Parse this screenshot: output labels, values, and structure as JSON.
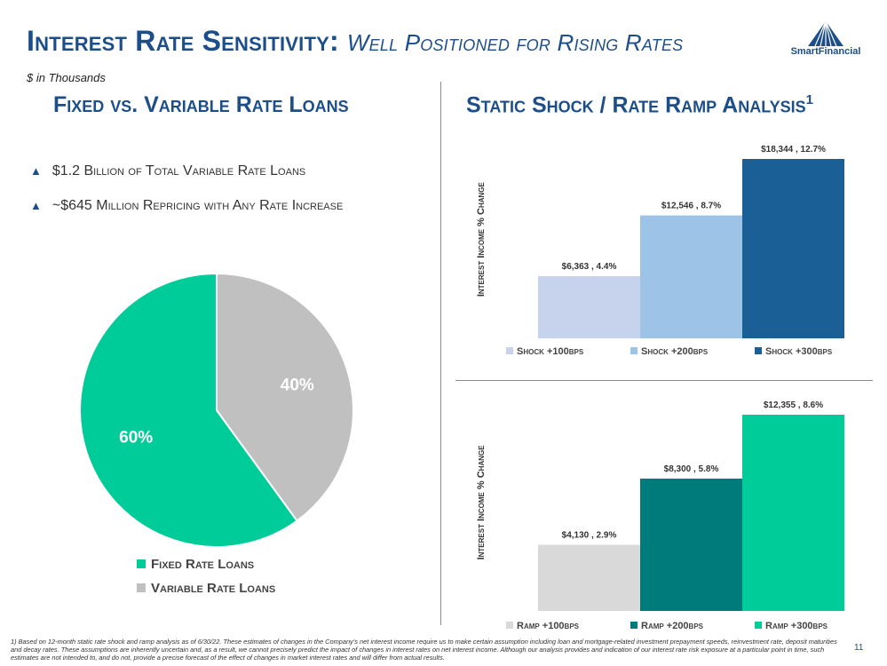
{
  "header": {
    "title_main": "Interest Rate Sensitivity:",
    "title_sub": "Well Positioned for Rising Rates",
    "units_note": "$ in Thousands",
    "logo_text": "SmartFinancial"
  },
  "left_panel": {
    "title": "Fixed vs. Variable Rate Loans",
    "bullets": [
      "$1.2 Billion of Total Variable Rate Loans",
      "~$645 Million Repricing with Any Rate Increase"
    ]
  },
  "right_panel": {
    "title": "Static Shock / Rate Ramp Analysis",
    "title_superscript": "1"
  },
  "colors": {
    "title_blue": "#1c4e8a",
    "fixed": "#00cc99",
    "variable": "#c0c0c0"
  },
  "chart_data": [
    {
      "type": "pie",
      "slices": [
        {
          "label": "Fixed Rate Loans",
          "value": 60,
          "display": "60%",
          "color": "#00cc99"
        },
        {
          "label": "Variable Rate Loans",
          "value": 40,
          "display": "40%",
          "color": "#c0c0c0"
        }
      ],
      "legend_position": "bottom"
    },
    {
      "type": "bar",
      "ylabel": "Interest Income % Change",
      "categories": [
        "Shock +100bps",
        "Shock +200bps",
        "Shock +300bps"
      ],
      "values": [
        4.4,
        8.7,
        12.7
      ],
      "data_labels": [
        "$6,363 , 4.4%",
        "$12,546 , 8.7%",
        "$18,344 , 12.7%"
      ],
      "colors": [
        "#c7d2ec",
        "#9dc3e6",
        "#1a5f96"
      ],
      "ylim": [
        0,
        14
      ],
      "legend_position": "bottom",
      "grid": false
    },
    {
      "type": "bar",
      "ylabel": "Interest Income % Change",
      "categories": [
        "Ramp +100bps",
        "Ramp +200bps",
        "Ramp +300bps"
      ],
      "values": [
        2.9,
        5.8,
        8.6
      ],
      "data_labels": [
        "$4,130 , 2.9%",
        "$8,300 , 5.8%",
        "$12,355 , 8.6%"
      ],
      "colors": [
        "#d9d9d9",
        "#007b7b",
        "#00cc99"
      ],
      "ylim": [
        0,
        9.5
      ],
      "legend_position": "bottom",
      "grid": false
    }
  ],
  "footnote": "1) Based on 12-month static rate shock and ramp analysis as of 6/30/22. These estimates of changes in the Company’s net interest income require us to make certain assumption including loan and mortgage-related investment prepayment speeds, reinvestment rate, deposit maturities and decay rates. These assumptions are inherently uncertain and, as a result, we cannot precisely predict the impact of changes in interest rates on net interest income. Although our analysis provides and indication of our interest rate risk exposure at a particular point in time, such estimates are not intended to, and do not, provide a precise forecast of the effect of changes in market interest rates and will differ from actual results.",
  "page_number": "11"
}
